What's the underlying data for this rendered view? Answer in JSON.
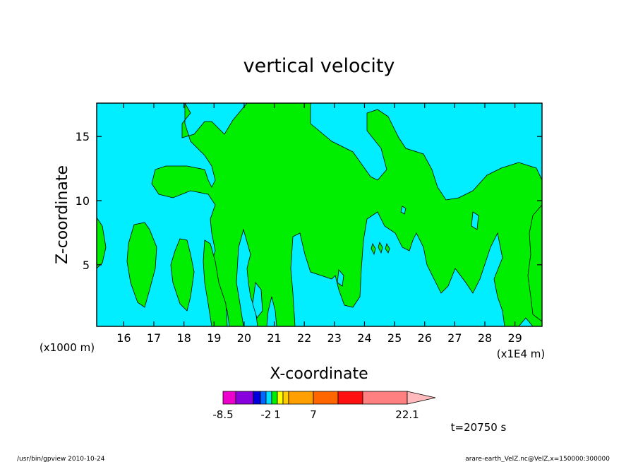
{
  "title": "vertical velocity",
  "footer": {
    "left": "/usr/bin/gpview   2010-10-24",
    "right": "arare-earth_VelZ.nc@VelZ,x=150000:300000"
  },
  "time_label": "t=20750 s",
  "colors": {
    "background_field": "#00eeff",
    "updraft_field": "#00ee00",
    "frame": "#000000"
  },
  "colorbar": {
    "colors": [
      "#ee00cc",
      "#8800dd",
      "#0000dd",
      "#0066ff",
      "#00ddff",
      "#00ee00",
      "#ffff00",
      "#ffcc00",
      "#ffa000",
      "#ff6600",
      "#ff1010",
      "#ff8080",
      "#ffbbbb"
    ],
    "tick_labels": [
      {
        "text": "-8.5",
        "boundary": 0
      },
      {
        "text": "-2",
        "boundary": 4
      },
      {
        "text": "1",
        "boundary": 6
      },
      {
        "text": "7",
        "boundary": 9
      },
      {
        "text": "22.1",
        "boundary": 12
      }
    ]
  },
  "chart_data": {
    "type": "contour",
    "title": "vertical velocity",
    "xlabel": "X-coordinate",
    "ylabel": "Z-coordinate",
    "x_unit_label": "(x1E4 m)",
    "y_unit_label": "(x1000 m)",
    "xlim": [
      15.1,
      29.9
    ],
    "ylim": [
      0.2,
      17.6
    ],
    "x_ticks": [
      16,
      17,
      18,
      19,
      20,
      21,
      22,
      23,
      24,
      25,
      26,
      27,
      28,
      29
    ],
    "y_ticks": [
      5,
      10,
      15
    ],
    "levels": [
      -8.5,
      -2,
      1,
      7,
      22.1
    ],
    "filled_regions_description_colors": {
      "below_0": "#00eeff",
      "0_to_1": "#00ee00"
    }
  }
}
